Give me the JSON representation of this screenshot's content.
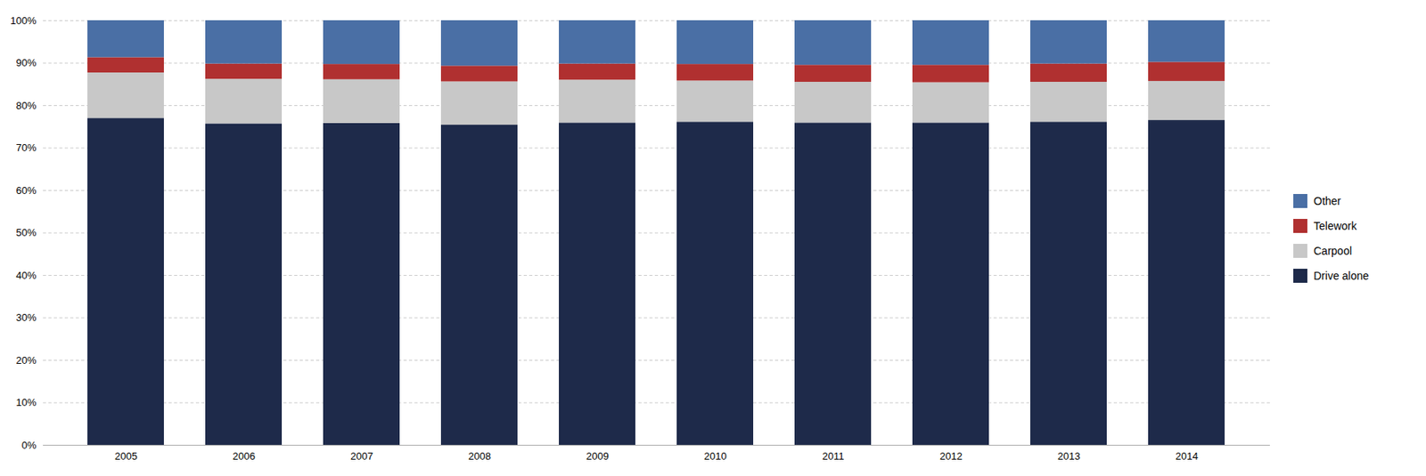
{
  "chart_data": {
    "type": "bar",
    "stacked": true,
    "grid": true,
    "legend": "right",
    "categories": [
      "2005",
      "2006",
      "2007",
      "2008",
      "2009",
      "2010",
      "2011",
      "2012",
      "2013",
      "2014"
    ],
    "series": [
      {
        "name": "Drive alone",
        "color": "#1e2a4a",
        "values": [
          77.0,
          75.7,
          75.8,
          75.4,
          75.9,
          76.1,
          75.9,
          75.9,
          76.1,
          76.5
        ]
      },
      {
        "name": "Carpool",
        "color": "#c8c8c8",
        "values": [
          10.7,
          10.5,
          10.3,
          10.2,
          10.1,
          9.7,
          9.6,
          9.5,
          9.4,
          9.2
        ]
      },
      {
        "name": "Telework",
        "color": "#b03030",
        "values": [
          3.6,
          3.6,
          3.6,
          3.7,
          3.8,
          3.9,
          4.0,
          4.1,
          4.3,
          4.5
        ]
      },
      {
        "name": "Other",
        "color": "#4a6fa5",
        "values": [
          8.7,
          10.2,
          10.3,
          10.7,
          10.2,
          10.3,
          10.5,
          10.5,
          10.2,
          9.8
        ]
      }
    ],
    "ylim": [
      0,
      100
    ],
    "yticks": [
      {
        "value": 0,
        "label": "0%"
      },
      {
        "value": 10,
        "label": "10%"
      },
      {
        "value": 20,
        "label": "20%"
      },
      {
        "value": 30,
        "label": "30%"
      },
      {
        "value": 40,
        "label": "40%"
      },
      {
        "value": 50,
        "label": "50%"
      },
      {
        "value": 60,
        "label": "60%"
      },
      {
        "value": 70,
        "label": "70%"
      },
      {
        "value": 80,
        "label": "80%"
      },
      {
        "value": 90,
        "label": "90%"
      },
      {
        "value": 100,
        "label": "100%"
      }
    ]
  }
}
